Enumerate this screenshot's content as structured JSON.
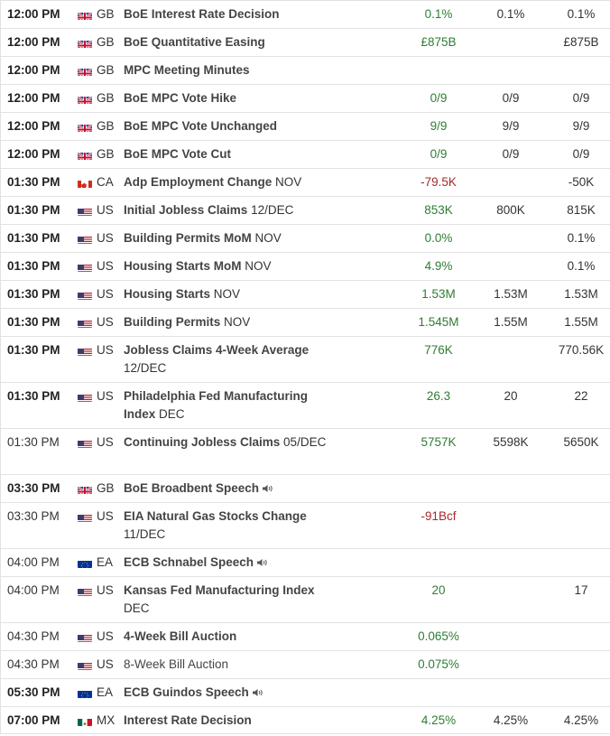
{
  "rows": [
    {
      "time": "12:00 PM",
      "bold_time": true,
      "country": "GB",
      "flag": "gb",
      "event": "BoE Interest Rate Decision",
      "period": "",
      "actual": "0.1%",
      "actual_color": "green",
      "consensus": "0.1%",
      "previous": "0.1%",
      "speech": false,
      "lines": 1
    },
    {
      "time": "12:00 PM",
      "bold_time": true,
      "country": "GB",
      "flag": "gb",
      "event": "BoE Quantitative Easing",
      "period": "",
      "actual": "£875B",
      "actual_color": "green",
      "consensus": "",
      "previous": "£875B",
      "speech": false,
      "lines": 1
    },
    {
      "time": "12:00 PM",
      "bold_time": true,
      "country": "GB",
      "flag": "gb",
      "event": "MPC Meeting Minutes",
      "period": "",
      "actual": "",
      "actual_color": "green",
      "consensus": "",
      "previous": "",
      "speech": false,
      "lines": 1
    },
    {
      "time": "12:00 PM",
      "bold_time": true,
      "country": "GB",
      "flag": "gb",
      "event": "BoE MPC Vote Hike",
      "period": "",
      "actual": "0/9",
      "actual_color": "green",
      "consensus": "0/9",
      "previous": "0/9",
      "speech": false,
      "lines": 1
    },
    {
      "time": "12:00 PM",
      "bold_time": true,
      "country": "GB",
      "flag": "gb",
      "event": "BoE MPC Vote Unchanged",
      "period": "",
      "actual": "9/9",
      "actual_color": "green",
      "consensus": "9/9",
      "previous": "9/9",
      "speech": false,
      "lines": 1
    },
    {
      "time": "12:00 PM",
      "bold_time": true,
      "country": "GB",
      "flag": "gb",
      "event": "BoE MPC Vote Cut",
      "period": "",
      "actual": "0/9",
      "actual_color": "green",
      "consensus": "0/9",
      "previous": "0/9",
      "speech": false,
      "lines": 1
    },
    {
      "time": "01:30 PM",
      "bold_time": true,
      "country": "CA",
      "flag": "ca",
      "event": "Adp Employment Change",
      "period": "NOV",
      "actual": "-79.5K",
      "actual_color": "red",
      "consensus": "",
      "previous": "-50K",
      "speech": false,
      "lines": 1
    },
    {
      "time": "01:30 PM",
      "bold_time": true,
      "country": "US",
      "flag": "us",
      "event": "Initial Jobless Claims",
      "period": "12/DEC",
      "actual": "853K",
      "actual_color": "green",
      "consensus": "800K",
      "previous": "815K",
      "speech": false,
      "lines": 1
    },
    {
      "time": "01:30 PM",
      "bold_time": true,
      "country": "US",
      "flag": "us",
      "event": "Building Permits MoM",
      "period": "NOV",
      "actual": "0.0%",
      "actual_color": "green",
      "consensus": "",
      "previous": "0.1%",
      "speech": false,
      "lines": 1
    },
    {
      "time": "01:30 PM",
      "bold_time": true,
      "country": "US",
      "flag": "us",
      "event": "Housing Starts MoM",
      "period": "NOV",
      "actual": "4.9%",
      "actual_color": "green",
      "consensus": "",
      "previous": "0.1%",
      "speech": false,
      "lines": 1
    },
    {
      "time": "01:30 PM",
      "bold_time": true,
      "country": "US",
      "flag": "us",
      "event": "Housing Starts",
      "period": "NOV",
      "actual": "1.53M",
      "actual_color": "green",
      "consensus": "1.53M",
      "previous": "1.53M",
      "speech": false,
      "lines": 1
    },
    {
      "time": "01:30 PM",
      "bold_time": true,
      "country": "US",
      "flag": "us",
      "event": "Building Permits",
      "period": "NOV",
      "actual": "1.545M",
      "actual_color": "green",
      "consensus": "1.55M",
      "previous": "1.55M",
      "speech": false,
      "lines": 1
    },
    {
      "time": "01:30 PM",
      "bold_time": true,
      "country": "US",
      "flag": "us",
      "event": "Jobless Claims 4-Week Average",
      "period": "12/DEC",
      "actual": "776K",
      "actual_color": "green",
      "consensus": "",
      "previous": "770.56K",
      "speech": false,
      "lines": 2
    },
    {
      "time": "01:30 PM",
      "bold_time": true,
      "country": "US",
      "flag": "us",
      "event": "Philadelphia Fed Manufacturing Index",
      "period": "DEC",
      "actual": "26.3",
      "actual_color": "green",
      "consensus": "20",
      "previous": "22",
      "speech": false,
      "lines": 2
    },
    {
      "time": "01:30 PM",
      "bold_time": false,
      "country": "US",
      "flag": "us",
      "event": "Continuing Jobless Claims",
      "period": "05/DEC",
      "actual": "5757K",
      "actual_color": "green",
      "consensus": "5598K",
      "previous": "5650K",
      "speech": false,
      "lines": 2
    },
    {
      "time": "03:30 PM",
      "bold_time": true,
      "country": "GB",
      "flag": "gb",
      "event": "BoE Broadbent Speech",
      "period": "",
      "actual": "",
      "actual_color": "green",
      "consensus": "",
      "previous": "",
      "speech": true,
      "lines": 1
    },
    {
      "time": "03:30 PM",
      "bold_time": false,
      "country": "US",
      "flag": "us",
      "event": "EIA Natural Gas Stocks Change",
      "period": "11/DEC",
      "actual": "-91Bcf",
      "actual_color": "red",
      "consensus": "",
      "previous": "",
      "speech": false,
      "lines": 2
    },
    {
      "time": "04:00 PM",
      "bold_time": false,
      "country": "EA",
      "flag": "eu",
      "event": "ECB Schnabel Speech",
      "period": "",
      "actual": "",
      "actual_color": "green",
      "consensus": "",
      "previous": "",
      "speech": true,
      "lines": 1
    },
    {
      "time": "04:00 PM",
      "bold_time": false,
      "country": "US",
      "flag": "us",
      "event": "Kansas Fed Manufacturing Index",
      "period": "DEC",
      "actual": "20",
      "actual_color": "green",
      "consensus": "",
      "previous": "17",
      "speech": false,
      "lines": 2
    },
    {
      "time": "04:30 PM",
      "bold_time": false,
      "country": "US",
      "flag": "us",
      "event": "4-Week Bill Auction",
      "period": "",
      "actual": "0.065%",
      "actual_color": "green",
      "consensus": "",
      "previous": "",
      "speech": false,
      "lines": 1
    },
    {
      "time": "04:30 PM",
      "bold_time": false,
      "country": "US",
      "flag": "us",
      "event": "8-Week Bill Auction",
      "period": "",
      "actual": "0.075%",
      "actual_color": "green",
      "consensus": "",
      "previous": "",
      "speech": false,
      "lines": 1,
      "plain_event": true
    },
    {
      "time": "05:30 PM",
      "bold_time": true,
      "country": "EA",
      "flag": "eu",
      "event": "ECB Guindos Speech",
      "period": "",
      "actual": "",
      "actual_color": "green",
      "consensus": "",
      "previous": "",
      "speech": true,
      "lines": 1
    },
    {
      "time": "07:00 PM",
      "bold_time": true,
      "country": "MX",
      "flag": "mx",
      "event": "Interest Rate Decision",
      "period": "",
      "actual": "4.25%",
      "actual_color": "green",
      "consensus": "4.25%",
      "previous": "4.25%",
      "speech": false,
      "lines": 1
    }
  ]
}
